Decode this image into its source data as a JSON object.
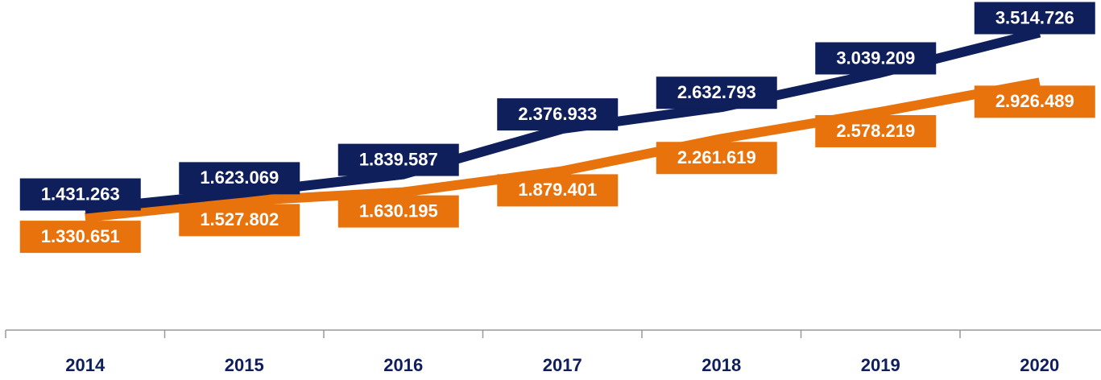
{
  "chart_data": {
    "type": "line",
    "categories": [
      "2014",
      "2015",
      "2016",
      "2017",
      "2018",
      "2019",
      "2020"
    ],
    "series": [
      {
        "color": "#0e1f5b",
        "values": [
          1431263,
          1623069,
          1839587,
          2376933,
          2632793,
          3039209,
          3514726
        ],
        "value_labels": [
          "1.431.263",
          "1.623.069",
          "1.839.587",
          "2.376.933",
          "2.632.793",
          "3.039.209",
          "3.514.726"
        ]
      },
      {
        "color": "#e8720c",
        "values": [
          1330651,
          1527802,
          1630195,
          1879401,
          2261619,
          2578219,
          2926489
        ],
        "value_labels": [
          "1.330.651",
          "1.527.802",
          "1.630.195",
          "1.879.401",
          "2.261.619",
          "2.578.219",
          "2.926.489"
        ]
      }
    ],
    "ylim": [
      0,
      3900000
    ]
  }
}
